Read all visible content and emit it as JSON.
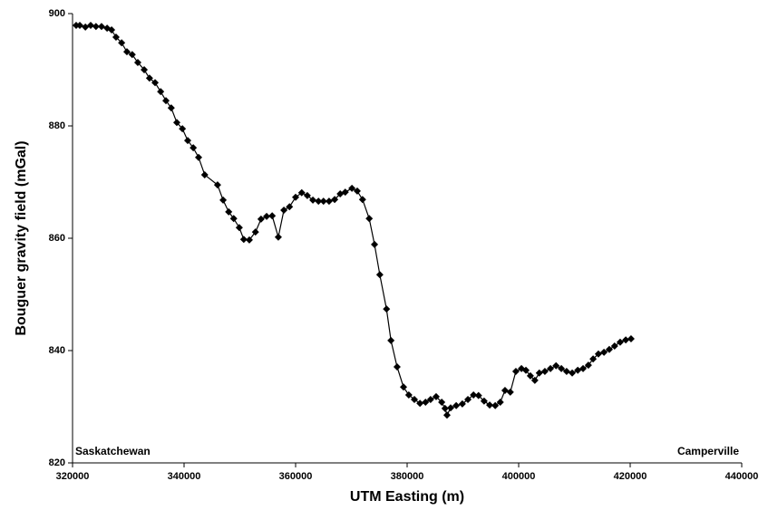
{
  "chart_data": {
    "type": "line",
    "x_label": "UTM Easting (m)",
    "y_label": "Bouguer gravity field (mGal)",
    "annotations": [
      "Saskatchewan",
      "Camperville"
    ],
    "color": "#000000",
    "marker": "diamond",
    "xlim": [
      320000,
      440000
    ],
    "xticks": [
      320000,
      340000,
      360000,
      380000,
      400000,
      420000,
      440000
    ],
    "ylim": [
      820,
      900
    ],
    "yticks": [
      820,
      840,
      860,
      880,
      900
    ],
    "grid": false,
    "x": [
      320650,
      321300,
      322300,
      323250,
      324200,
      325200,
      326200,
      327000,
      327800,
      328800,
      329750,
      330700,
      331700,
      332850,
      333800,
      334800,
      335800,
      336750,
      337700,
      338700,
      339700,
      340650,
      341650,
      342600,
      343700,
      346000,
      347000,
      348000,
      348900,
      349900,
      350700,
      351700,
      352800,
      353800,
      354800,
      355800,
      356900,
      357900,
      358900,
      360000,
      361100,
      362100,
      363100,
      364100,
      365000,
      366000,
      367000,
      368000,
      368900,
      370100,
      371050,
      372000,
      373200,
      374150,
      375100,
      376300,
      377100,
      378200,
      379350,
      380300,
      381300,
      382300,
      383300,
      384200,
      385200,
      386200,
      386800,
      387150,
      387800,
      388800,
      389900,
      390900,
      391900,
      392800,
      393800,
      394800,
      395800,
      396700,
      397550,
      398500,
      399500,
      400500,
      401300,
      402100,
      402900,
      403700,
      404700,
      405700,
      406700,
      407650,
      408600,
      409600,
      410600,
      411550,
      412500,
      413350,
      414300,
      415300,
      416250,
      417200,
      418200,
      419200,
      420150
    ],
    "values": [
      897.9,
      897.9,
      897.6,
      897.9,
      897.7,
      897.7,
      897.4,
      897.1,
      895.8,
      894.8,
      893.2,
      892.7,
      891.3,
      890,
      888.5,
      887.7,
      886.1,
      884.5,
      883.2,
      880.6,
      879.5,
      877.4,
      876.1,
      874.4,
      871.3,
      869.5,
      866.8,
      864.7,
      863.5,
      861.9,
      859.8,
      859.7,
      861.1,
      863.4,
      863.9,
      864,
      860.2,
      865,
      865.6,
      867.3,
      868.1,
      867.6,
      866.8,
      866.6,
      866.6,
      866.6,
      866.9,
      867.9,
      868.2,
      868.9,
      868.4,
      866.9,
      863.5,
      858.9,
      853.5,
      847.4,
      841.8,
      837.1,
      833.5,
      832.1,
      831.3,
      830.6,
      830.8,
      831.3,
      831.8,
      830.8,
      829.7,
      828.5,
      829.8,
      830.2,
      830.5,
      831.3,
      832.1,
      832,
      831,
      830.3,
      830.2,
      830.8,
      832.9,
      832.6,
      836.3,
      836.8,
      836.5,
      835.5,
      834.7,
      836,
      836.3,
      836.8,
      837.3,
      836.8,
      836.3,
      836,
      836.5,
      836.8,
      837.4,
      838.5,
      839.4,
      839.7,
      840.2,
      840.8,
      841.5,
      841.9,
      842.1
    ]
  }
}
